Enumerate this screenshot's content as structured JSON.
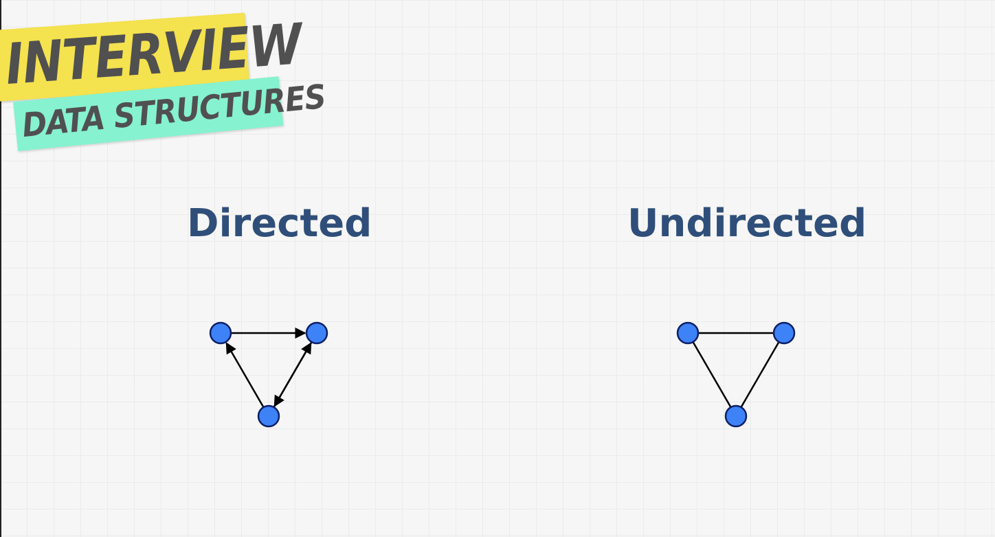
{
  "logo": {
    "line1": "INTERVIEW",
    "line2": "DATA STRUCTURES",
    "colors": {
      "line1_bg": "#f4e24f",
      "line2_bg": "#86f2cf",
      "text": "#505050"
    }
  },
  "panels": [
    {
      "title": "Directed",
      "edges_directed": true,
      "nodes": [
        "top-left",
        "top-right",
        "bottom"
      ],
      "edges": [
        {
          "from": "top-left",
          "to": "top-right"
        },
        {
          "from": "top-right",
          "to": "bottom"
        },
        {
          "from": "bottom",
          "to": "top-right"
        },
        {
          "from": "bottom",
          "to": "top-left"
        }
      ]
    },
    {
      "title": "Undirected",
      "edges_directed": false,
      "nodes": [
        "top-left",
        "top-right",
        "bottom"
      ],
      "edges": [
        {
          "from": "top-left",
          "to": "top-right"
        },
        {
          "from": "top-right",
          "to": "bottom"
        },
        {
          "from": "bottom",
          "to": "top-left"
        }
      ]
    }
  ],
  "colors": {
    "background": "#f6f6f6",
    "title": "#2f4f7a",
    "node_fill": "#3e82f7",
    "node_stroke": "#0d1f66",
    "edge": "#000000"
  }
}
